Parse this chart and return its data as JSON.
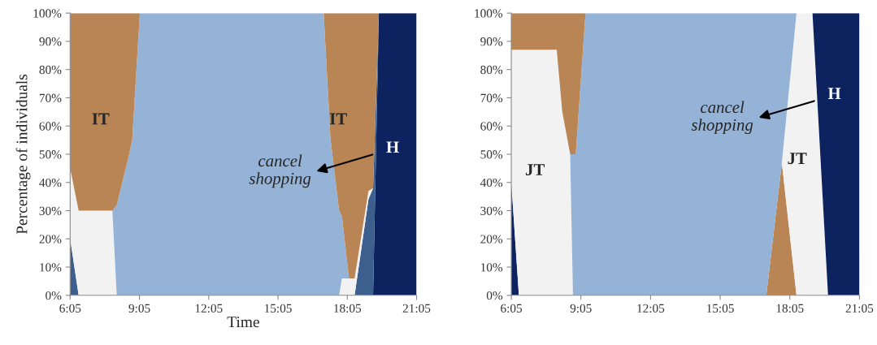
{
  "chart_data": [
    {
      "type": "area",
      "stacked": true,
      "ylabel": "Percentage of individuals",
      "xlabel": "Time",
      "x": [
        6.0833,
        6.45,
        7.91,
        8.1,
        8.64,
        8.77,
        9.1,
        17.06,
        17.36,
        17.73,
        17.85,
        18.16,
        18.4,
        19.0,
        19.2,
        19.45,
        21.0833
      ],
      "series": [
        {
          "color": "#0d2360",
          "values": [
            null,
            null,
            null,
            null,
            null,
            null,
            null,
            null,
            null,
            null,
            null,
            null,
            null,
            null,
            0,
            100,
            100
          ]
        },
        {
          "color": "#3d5f8e",
          "values": [
            20,
            0,
            null,
            null,
            null,
            null,
            null,
            null,
            null,
            null,
            null,
            null,
            0,
            34,
            38,
            0,
            null
          ]
        },
        {
          "color": "#f2f2f2",
          "values": [
            25,
            30,
            30,
            0,
            null,
            null,
            null,
            null,
            null,
            0,
            6,
            6,
            6,
            3,
            0,
            null,
            null
          ]
        },
        {
          "color": "#95b3d7",
          "values": [
            null,
            null,
            0,
            32,
            50,
            55,
            100,
            100,
            55,
            30,
            22,
            0,
            null,
            null,
            null,
            null,
            null
          ]
        },
        {
          "color": "#b98555",
          "values": [
            55,
            70,
            70,
            68,
            50,
            45,
            0,
            0,
            45,
            70,
            72,
            94,
            94,
            63,
            62,
            0,
            null
          ]
        }
      ],
      "xlim": [
        6.0833,
        21.0833
      ],
      "xticks": [
        {
          "value": 6.0833,
          "label": "6:05"
        },
        {
          "value": 9.0833,
          "label": "9:05"
        },
        {
          "value": 12.0833,
          "label": "12:05"
        },
        {
          "value": 15.0833,
          "label": "15:05"
        },
        {
          "value": 18.0833,
          "label": "18:05"
        },
        {
          "value": 21.0833,
          "label": "21:05"
        }
      ],
      "ylim": [
        0,
        100
      ],
      "yticks": [
        {
          "value": 0,
          "label": "0%"
        },
        {
          "value": 10,
          "label": "10%"
        },
        {
          "value": 20,
          "label": "20%"
        },
        {
          "value": 30,
          "label": "30%"
        },
        {
          "value": 40,
          "label": "40%"
        },
        {
          "value": 50,
          "label": "50%"
        },
        {
          "value": 60,
          "label": "60%"
        },
        {
          "value": 70,
          "label": "70%"
        },
        {
          "value": 80,
          "label": "80%"
        },
        {
          "value": 90,
          "label": "90%"
        },
        {
          "value": 100,
          "label": "100%"
        }
      ],
      "annotations": [
        "IT",
        "IT",
        "cancel\nshopping",
        "H"
      ]
    },
    {
      "type": "area",
      "stacked": true,
      "x": [
        6.0833,
        6.41,
        8.04,
        8.28,
        8.62,
        8.74,
        8.86,
        9.28,
        17.07,
        17.74,
        18.37,
        19.06,
        19.73,
        21.0833
      ],
      "series": [
        {
          "color": "#0d2360",
          "values": [
            40,
            0,
            null,
            null,
            null,
            null,
            null,
            null,
            null,
            null,
            null,
            null,
            null,
            null
          ]
        },
        {
          "color": "#b98555",
          "values": [
            null,
            null,
            null,
            null,
            null,
            null,
            null,
            null,
            0,
            47,
            0,
            null,
            null,
            null
          ]
        },
        {
          "color": "#f2f2f2",
          "values": [
            47,
            87,
            87,
            65,
            50,
            0,
            null,
            null,
            null,
            0,
            100,
            100,
            0,
            null
          ]
        },
        {
          "color": "#95b3d7",
          "values": [
            null,
            null,
            null,
            null,
            0,
            50,
            50,
            100,
            100,
            53,
            0,
            null,
            null,
            null
          ]
        },
        {
          "color": "#b98555",
          "values": [
            13,
            13,
            13,
            35,
            50,
            50,
            50,
            0,
            null,
            null,
            null,
            null,
            null,
            null
          ]
        },
        {
          "color": "#0d2360",
          "values": [
            null,
            null,
            null,
            null,
            null,
            null,
            null,
            null,
            null,
            null,
            null,
            0,
            100,
            100
          ]
        }
      ],
      "xlim": [
        6.0833,
        21.0833
      ],
      "xticks": [
        {
          "value": 6.0833,
          "label": "6:05"
        },
        {
          "value": 9.0833,
          "label": "9:05"
        },
        {
          "value": 12.0833,
          "label": "12:05"
        },
        {
          "value": 15.0833,
          "label": "15:05"
        },
        {
          "value": 18.0833,
          "label": "18:05"
        },
        {
          "value": 21.0833,
          "label": "21:05"
        }
      ],
      "ylim": [
        0,
        100
      ],
      "yticks": [
        {
          "value": 0,
          "label": "0%"
        },
        {
          "value": 10,
          "label": "10%"
        },
        {
          "value": 20,
          "label": "20%"
        },
        {
          "value": 30,
          "label": "30%"
        },
        {
          "value": 40,
          "label": "40%"
        },
        {
          "value": 50,
          "label": "50%"
        },
        {
          "value": 60,
          "label": "60%"
        },
        {
          "value": 70,
          "label": "70%"
        },
        {
          "value": 80,
          "label": "80%"
        },
        {
          "value": 90,
          "label": "90%"
        },
        {
          "value": 100,
          "label": "100%"
        }
      ],
      "annotations": [
        "JT",
        "JT",
        "cancel\nshopping",
        "H"
      ]
    }
  ]
}
